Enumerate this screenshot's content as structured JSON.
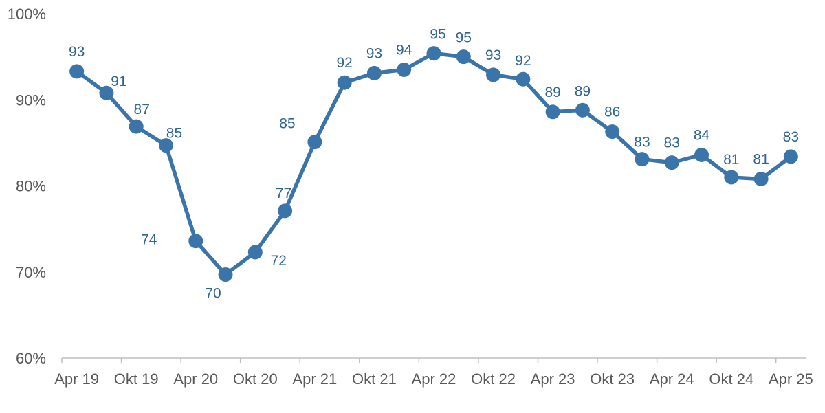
{
  "colors": {
    "series": "#3b74a8",
    "label": "#2e6496",
    "axis": "#bfbfbf",
    "tick_text": "#595959",
    "background": "#ffffff"
  },
  "chart_data": {
    "type": "line",
    "title": "",
    "xlabel": "",
    "ylabel": "",
    "ylim": [
      60,
      100
    ],
    "y_ticks": [
      "60%",
      "70%",
      "80%",
      "90%",
      "100%"
    ],
    "x_tick_labels": [
      "Apr 19",
      "Okt 19",
      "Apr 20",
      "Okt 20",
      "Apr 21",
      "Okt 21",
      "Apr 22",
      "Okt 22",
      "Apr 23",
      "Okt 23",
      "Apr 24",
      "Okt 24",
      "Apr 25"
    ],
    "grid": false,
    "legend": "none",
    "series": [
      {
        "values": [
          93.3,
          90.8,
          86.9,
          84.7,
          73.6,
          69.7,
          72.3,
          77.1,
          85.1,
          92.0,
          93.1,
          93.5,
          95.4,
          95.0,
          92.9,
          92.4,
          88.6,
          88.8,
          86.3,
          83.1,
          82.7,
          83.6,
          81.0,
          80.8,
          83.4
        ],
        "labels": [
          "93",
          "91",
          "87",
          "85",
          "74",
          "70",
          "72",
          "77",
          "85",
          "92",
          "93",
          "94",
          "95",
          "95",
          "93",
          "92",
          "89",
          "89",
          "86",
          "83",
          "83",
          "84",
          "81",
          "81",
          "83"
        ]
      }
    ]
  }
}
